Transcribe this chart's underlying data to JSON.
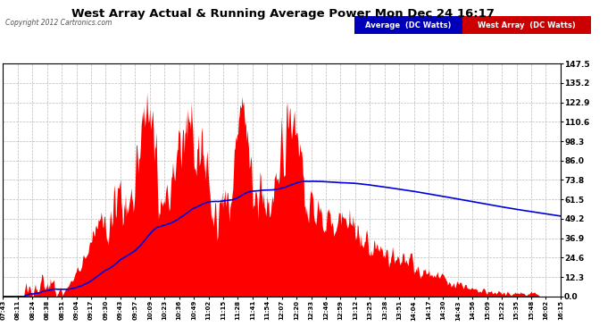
{
  "title": "West Array Actual & Running Average Power Mon Dec 24 16:17",
  "copyright": "Copyright 2012 Cartronics.com",
  "y_ticks": [
    0.0,
    12.3,
    24.6,
    36.9,
    49.2,
    61.5,
    73.8,
    86.0,
    98.3,
    110.6,
    122.9,
    135.2,
    147.5
  ],
  "y_max": 147.5,
  "y_min": 0.0,
  "west_array_color": "#FF0000",
  "average_color": "#0000DD",
  "background_color": "#FFFFFF",
  "plot_bg_color": "#FFFFFF",
  "grid_color": "#BBBBBB",
  "legend_avg_bg": "#0000BB",
  "legend_west_bg": "#CC0000",
  "x_labels": [
    "07:43",
    "08:11",
    "08:24",
    "08:38",
    "08:51",
    "09:04",
    "09:17",
    "09:30",
    "09:43",
    "09:57",
    "10:09",
    "10:23",
    "10:36",
    "10:49",
    "11:02",
    "11:15",
    "11:28",
    "11:41",
    "11:54",
    "12:07",
    "12:20",
    "12:33",
    "12:46",
    "12:59",
    "13:12",
    "13:25",
    "13:38",
    "13:51",
    "14:04",
    "14:17",
    "14:30",
    "14:43",
    "14:56",
    "15:09",
    "15:22",
    "15:35",
    "15:48",
    "16:02",
    "16:15"
  ],
  "figsize": [
    6.9,
    3.75
  ],
  "dpi": 100
}
